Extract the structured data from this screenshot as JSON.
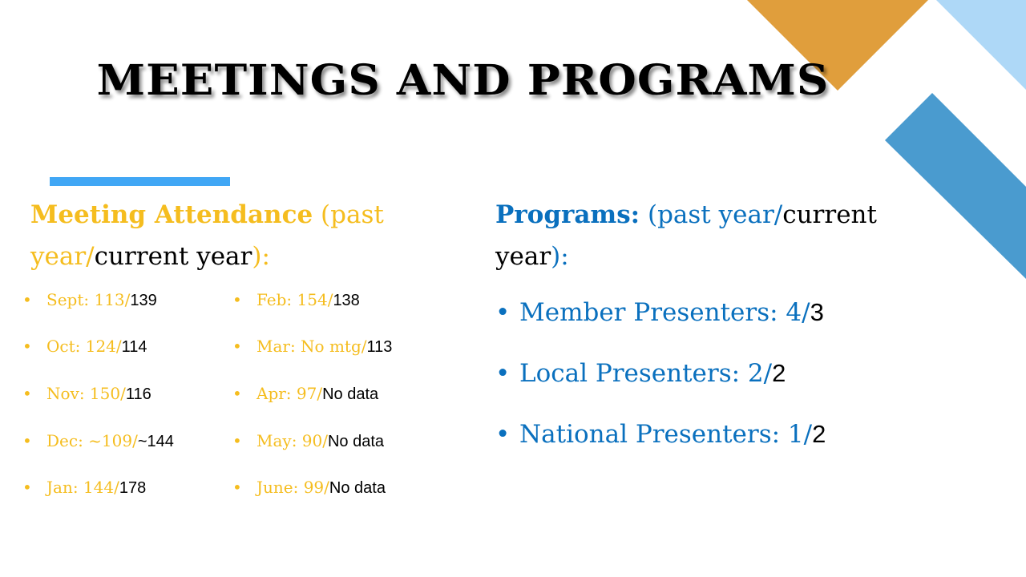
{
  "title": "MEETINGS AND PROGRAMS",
  "colors": {
    "past_year": "#f5bd1f",
    "programs": "#0a70be",
    "current_year": "#000000",
    "accent_bar": "#41a7f5",
    "orange_triangle": "#e09e3c",
    "light_blue_band": "#aed8f7",
    "blue_band": "#4a9bcf"
  },
  "attendance": {
    "heading_bold": "Meeting Attendance",
    "heading_past": " (past year/",
    "heading_current": "current year",
    "heading_close": "):",
    "left_column": [
      {
        "label": "Sept: 113/",
        "current": "139"
      },
      {
        "label": "Oct: 124/",
        "current": "114"
      },
      {
        "label": "Nov: 150/",
        "current": "116"
      },
      {
        "label": "Dec: ~109/",
        "current": "~144"
      },
      {
        "label": "Jan: 144/",
        "current": "178"
      }
    ],
    "right_column": [
      {
        "label": "Feb: 154/",
        "current": "138"
      },
      {
        "label": "Mar: No mtg/",
        "current": "113"
      },
      {
        "label": "Apr: 97/",
        "current": "No data"
      },
      {
        "label": "May: 90/",
        "current": "No data"
      },
      {
        "label": "June: 99/",
        "current": "No data"
      }
    ]
  },
  "programs": {
    "heading_bold": "Programs:",
    "heading_past": " (past year/",
    "heading_current": "current year",
    "heading_close": "):",
    "items": [
      {
        "label": "Member Presenters: 4/",
        "current": "3"
      },
      {
        "label": "Local Presenters: 2/",
        "current": "2"
      },
      {
        "label": "National Presenters: 1/",
        "current": "2"
      }
    ]
  }
}
